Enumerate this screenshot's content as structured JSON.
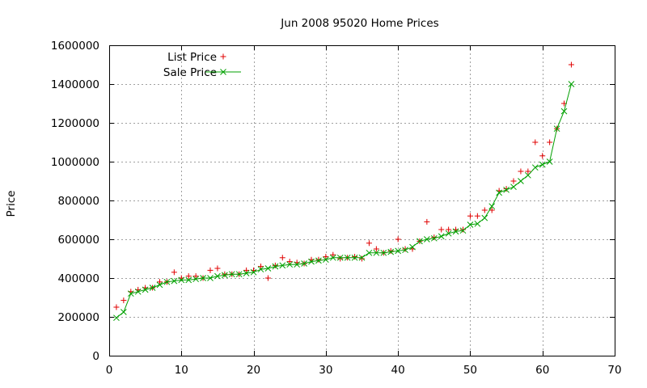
{
  "chart_data": {
    "type": "scatter",
    "title": "Jun 2008 95020 Home Prices",
    "xlabel": "",
    "ylabel": "Price",
    "xlim": [
      0,
      70
    ],
    "ylim": [
      0,
      1600000
    ],
    "x_ticks": [
      "0",
      "10",
      "20",
      "30",
      "40",
      "50",
      "60",
      "70"
    ],
    "y_ticks": [
      "0",
      "200000",
      "400000",
      "600000",
      "800000",
      "1000000",
      "1200000",
      "1400000",
      "1600000"
    ],
    "grid": true,
    "legend_position": "top-left",
    "series": [
      {
        "name": "List Price",
        "marker": "plus",
        "style": "points",
        "color": "#e00000",
        "x": [
          1,
          2,
          3,
          4,
          5,
          6,
          7,
          8,
          9,
          10,
          11,
          12,
          13,
          14,
          15,
          16,
          17,
          18,
          19,
          20,
          21,
          22,
          23,
          24,
          25,
          26,
          27,
          28,
          29,
          30,
          31,
          32,
          33,
          34,
          35,
          36,
          37,
          38,
          39,
          40,
          41,
          42,
          43,
          44,
          45,
          46,
          47,
          48,
          49,
          50,
          51,
          52,
          53,
          54,
          55,
          56,
          57,
          58,
          59,
          60,
          61,
          62,
          63,
          64
        ],
        "values": [
          250000,
          285000,
          330000,
          340000,
          350000,
          350000,
          380000,
          380000,
          430000,
          400000,
          410000,
          410000,
          400000,
          440000,
          450000,
          420000,
          420000,
          420000,
          440000,
          440000,
          460000,
          400000,
          465000,
          505000,
          485000,
          480000,
          475000,
          495000,
          495000,
          510000,
          520000,
          500000,
          505000,
          510000,
          500000,
          580000,
          550000,
          530000,
          540000,
          600000,
          550000,
          550000,
          590000,
          690000,
          610000,
          650000,
          650000,
          650000,
          650000,
          720000,
          720000,
          750000,
          750000,
          850000,
          860000,
          900000,
          950000,
          950000,
          1100000,
          1030000,
          1100000,
          1170000,
          1300000,
          1500000
        ]
      },
      {
        "name": "Sale Price",
        "marker": "cross",
        "style": "linespoints",
        "color": "#00a000",
        "x": [
          1,
          2,
          3,
          4,
          5,
          6,
          7,
          8,
          9,
          10,
          11,
          12,
          13,
          14,
          15,
          16,
          17,
          18,
          19,
          20,
          21,
          22,
          23,
          24,
          25,
          26,
          27,
          28,
          29,
          30,
          31,
          32,
          33,
          34,
          35,
          36,
          37,
          38,
          39,
          40,
          41,
          42,
          43,
          44,
          45,
          46,
          47,
          48,
          49,
          50,
          51,
          52,
          53,
          54,
          55,
          56,
          57,
          58,
          59,
          60,
          61,
          62,
          63,
          64
        ],
        "values": [
          195000,
          225000,
          320000,
          330000,
          340000,
          350000,
          365000,
          380000,
          385000,
          390000,
          390000,
          395000,
          400000,
          400000,
          410000,
          415000,
          420000,
          420000,
          425000,
          430000,
          445000,
          450000,
          460000,
          465000,
          470000,
          470000,
          475000,
          485000,
          490000,
          495000,
          505000,
          505000,
          505000,
          505000,
          505000,
          530000,
          530000,
          530000,
          535000,
          540000,
          545000,
          560000,
          590000,
          600000,
          605000,
          615000,
          630000,
          640000,
          645000,
          675000,
          680000,
          710000,
          770000,
          840000,
          855000,
          870000,
          900000,
          930000,
          970000,
          985000,
          1000000,
          1170000,
          1260000,
          1400000
        ]
      }
    ]
  }
}
